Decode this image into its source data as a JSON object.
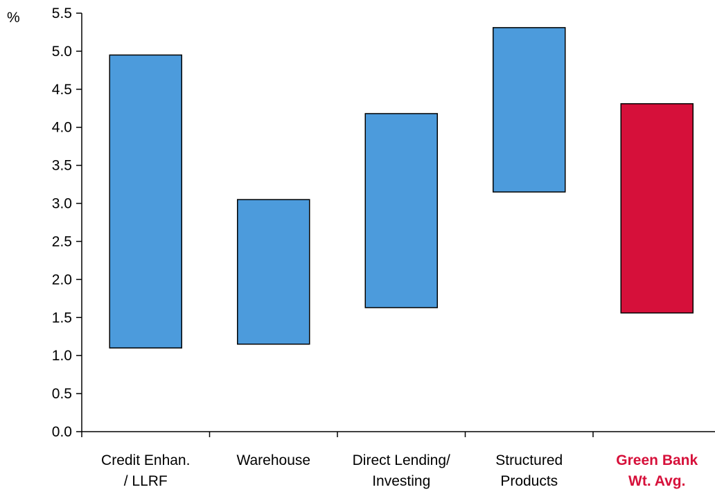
{
  "chart_data": {
    "type": "floating-bar",
    "ylabel": "%",
    "ylim": [
      0,
      5.5
    ],
    "yticks": [
      "0.0",
      "0.5",
      "1.0",
      "1.5",
      "2.0",
      "2.5",
      "3.0",
      "3.5",
      "4.0",
      "4.5",
      "5.0",
      "5.5"
    ],
    "grid": false,
    "categories": [
      {
        "lines": [
          "Credit Enhan.",
          "/ LLRF"
        ],
        "low": 1.1,
        "high": 4.95,
        "color": "#4C9BDC",
        "label_color": "#000000",
        "bold": false
      },
      {
        "lines": [
          "Warehouse"
        ],
        "low": 1.15,
        "high": 3.05,
        "color": "#4C9BDC",
        "label_color": "#000000",
        "bold": false
      },
      {
        "lines": [
          "Direct Lending/",
          "Investing"
        ],
        "low": 1.63,
        "high": 4.18,
        "color": "#4C9BDC",
        "label_color": "#000000",
        "bold": false
      },
      {
        "lines": [
          "Structured",
          "Products"
        ],
        "low": 3.15,
        "high": 5.31,
        "color": "#4C9BDC",
        "label_color": "#000000",
        "bold": false
      },
      {
        "lines": [
          "Green Bank",
          "Wt. Avg."
        ],
        "low": 1.56,
        "high": 4.31,
        "color": "#D6103A",
        "label_color": "#D6103A",
        "bold": true
      }
    ]
  }
}
